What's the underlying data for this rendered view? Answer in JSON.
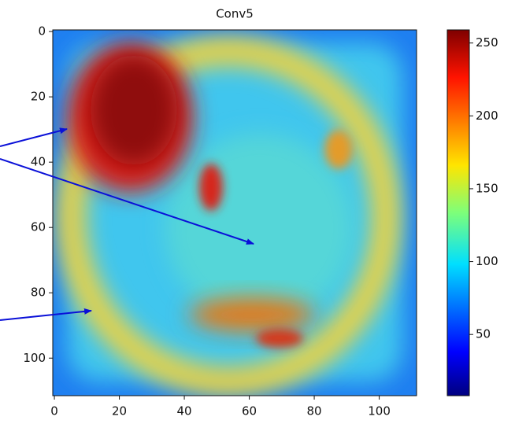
{
  "chart_data": {
    "type": "heatmap",
    "title": "Conv5",
    "xlim": [
      -0.5,
      111.5
    ],
    "xticks": [
      0,
      20,
      40,
      60,
      80,
      100
    ],
    "ylim": [
      111.5,
      -0.5
    ],
    "yticks": [
      0,
      20,
      40,
      60,
      80,
      100
    ],
    "colorbar": {
      "lim": [
        8,
        259
      ],
      "ticks": [
        50,
        100,
        150,
        200,
        250
      ]
    }
  }
}
